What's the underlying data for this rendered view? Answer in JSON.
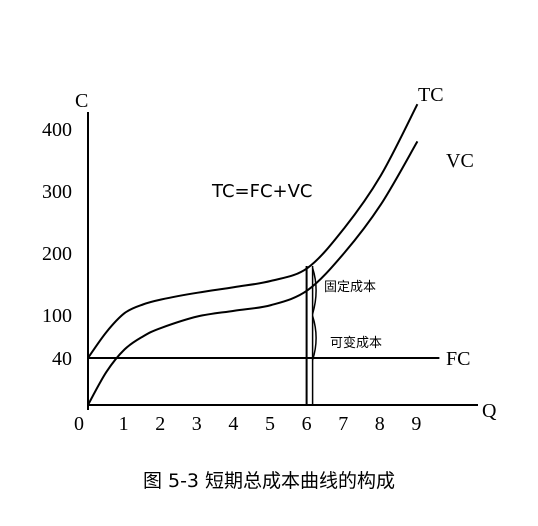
{
  "chart_data": {
    "type": "line",
    "xlabel": "Q",
    "ylabel": "C",
    "x_ticks": [
      "0",
      "1",
      "2",
      "3",
      "4",
      "5",
      "6",
      "7",
      "8",
      "9"
    ],
    "y_ticks": [
      "40",
      "100",
      "200",
      "300",
      "400"
    ],
    "series": [
      {
        "name": "TC",
        "points": [
          [
            0,
            40
          ],
          [
            0.5,
            76
          ],
          [
            1,
            103
          ],
          [
            1.5,
            117
          ],
          [
            2,
            125
          ],
          [
            3,
            136
          ],
          [
            4,
            145
          ],
          [
            5,
            155
          ],
          [
            6,
            176
          ],
          [
            7,
            240
          ],
          [
            8,
            325
          ],
          [
            9,
            440
          ]
        ]
      },
      {
        "name": "VC",
        "points": [
          [
            0,
            0
          ],
          [
            0.5,
            28
          ],
          [
            1,
            52
          ],
          [
            1.5,
            70
          ],
          [
            2,
            82
          ],
          [
            3,
            98
          ],
          [
            4,
            107
          ],
          [
            5,
            116
          ],
          [
            6,
            140
          ],
          [
            7,
            200
          ],
          [
            8,
            278
          ],
          [
            9,
            380
          ]
        ]
      },
      {
        "name": "FC",
        "points": [
          [
            0,
            40
          ],
          [
            9.6,
            40
          ]
        ]
      }
    ],
    "annotations": {
      "formula": "TC=FC+VC",
      "fixed_cost": "固定成本",
      "variable_cost": "可变成本"
    },
    "marker_x": 6
  },
  "caption": "图 5-3 短期总成本曲线的构成"
}
